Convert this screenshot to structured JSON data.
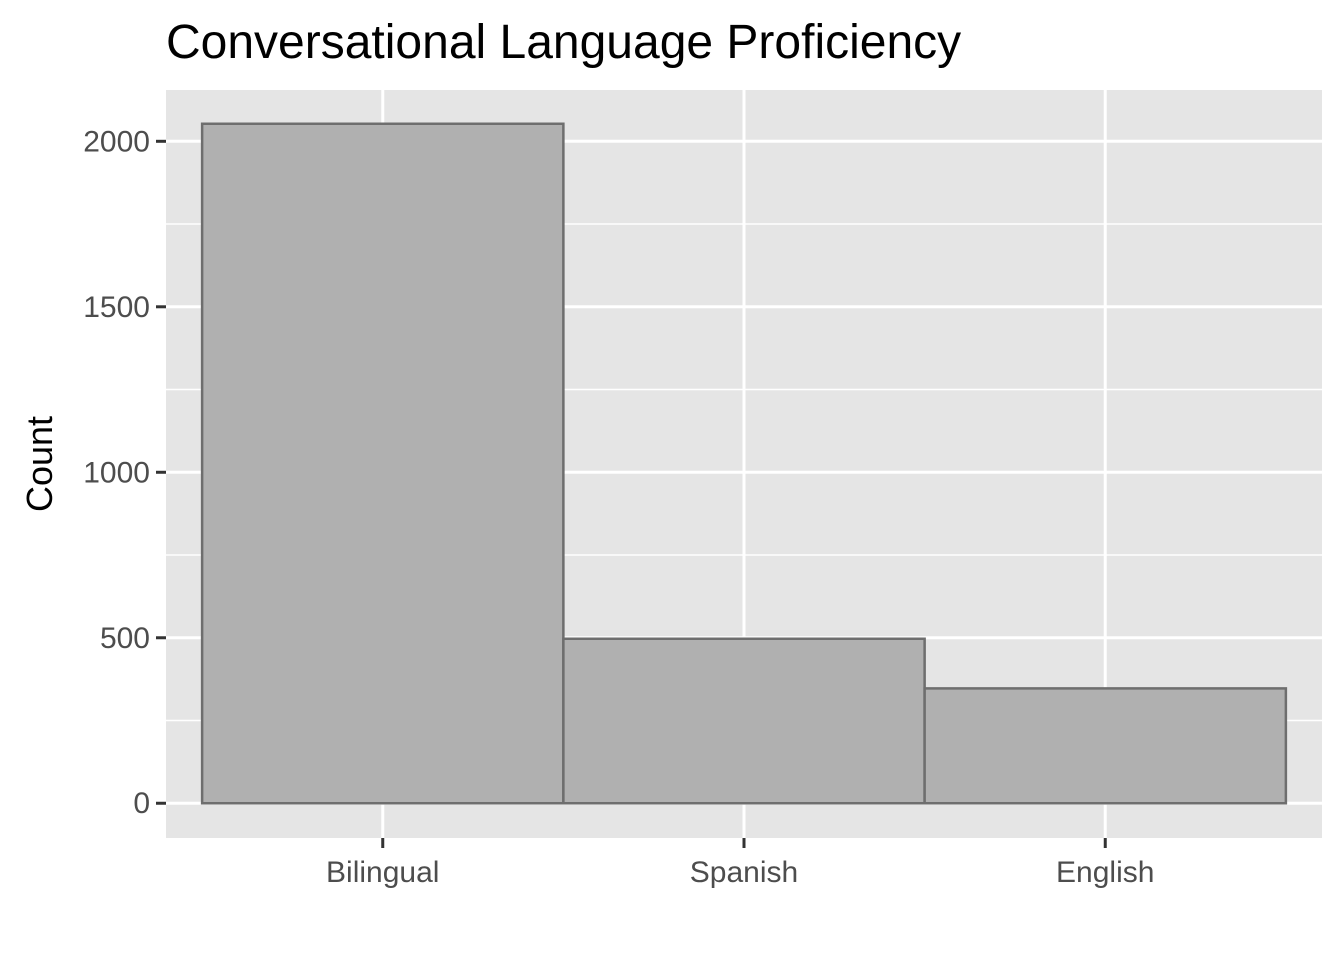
{
  "chart_data": {
    "type": "bar",
    "title": "Conversational Language Proficiency",
    "xlabel": "",
    "ylabel": "Count",
    "categories": [
      "Bilingual",
      "Spanish",
      "English"
    ],
    "values": [
      2053,
      497,
      347
    ],
    "ylim": [
      -105,
      2155
    ],
    "yticks": [
      0,
      500,
      1000,
      1500,
      2000
    ],
    "grid": true,
    "colors": {
      "panel_background": "#e5e5e5",
      "grid": "#ffffff",
      "bar_fill": "#b0b0b0",
      "bar_stroke": "#6e6e6e",
      "tick_mark": "#333333",
      "tick_label": "#4d4d4d",
      "text": "#000000"
    }
  }
}
